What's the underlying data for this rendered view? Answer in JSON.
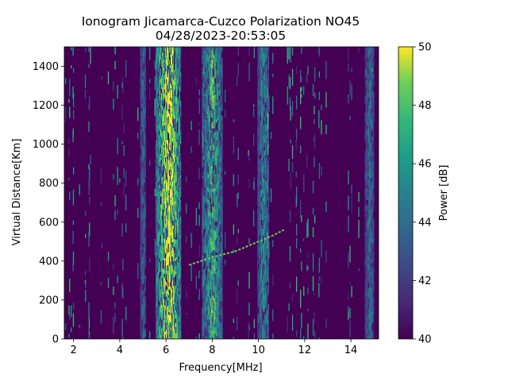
{
  "chart_data": {
    "type": "heatmap",
    "title": "Ionogram Jicamarca-Cuzco Polarization NO45",
    "subtitle": "04/28/2023-20:53:05",
    "xlabel": "Frequency[MHz]",
    "ylabel": "Virtual Distance[Km]",
    "colorbar_label": "Power [dB]",
    "xlim": [
      1.6,
      15.2
    ],
    "ylim": [
      0,
      1500
    ],
    "clim": [
      40,
      50
    ],
    "colormap": "viridis",
    "grid": false,
    "x_ticks": [
      2,
      4,
      6,
      8,
      10,
      12,
      14
    ],
    "y_ticks": [
      0,
      200,
      400,
      600,
      800,
      1000,
      1200,
      1400
    ],
    "colorbar_ticks": [
      40,
      42,
      44,
      46,
      48,
      50
    ],
    "background_power_db": 40,
    "vertical_bands": [
      {
        "x_center": 6.1,
        "x_width": 1.1,
        "power_db": 50
      },
      {
        "x_center": 8.0,
        "x_width": 0.9,
        "power_db": 47
      },
      {
        "x_center": 10.2,
        "x_width": 0.5,
        "power_db": 45
      },
      {
        "x_center": 5.0,
        "x_width": 0.25,
        "power_db": 44
      },
      {
        "x_center": 14.8,
        "x_width": 0.4,
        "power_db": 44
      }
    ],
    "trace": {
      "points": [
        [
          7.0,
          380
        ],
        [
          8.0,
          420
        ],
        [
          9.0,
          450
        ],
        [
          10.0,
          500
        ],
        [
          10.6,
          530
        ],
        [
          11.1,
          560
        ]
      ],
      "power_db": 48
    },
    "colors": {
      "low": "#440154",
      "high": "#fde725"
    }
  }
}
